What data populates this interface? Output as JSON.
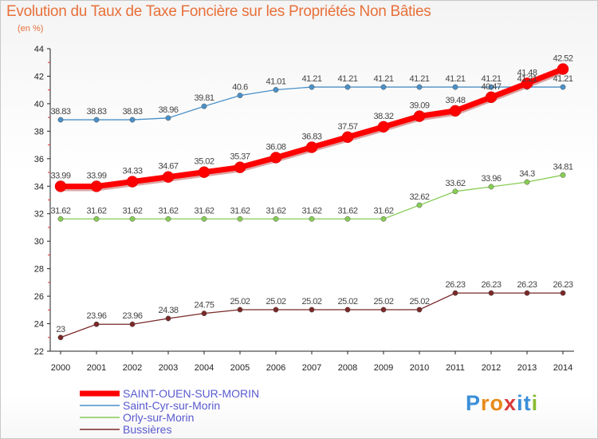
{
  "header": {
    "title": "Evolution du Taux de Taxe Foncière sur les Propriétés Non Bâties",
    "subtitle": "(en %)"
  },
  "chart_data": {
    "type": "line",
    "title": "Evolution du Taux de Taxe Foncière sur les Propriétés Non Bâties",
    "subtitle": "(en %)",
    "xlabel": "",
    "ylabel": "(en %)",
    "categories": [
      "2000",
      "2001",
      "2002",
      "2003",
      "2004",
      "2005",
      "2006",
      "2007",
      "2008",
      "2009",
      "2010",
      "2011",
      "2012",
      "2013",
      "2014"
    ],
    "ylim": [
      22,
      44
    ],
    "yticks": [
      22,
      24,
      26,
      28,
      30,
      32,
      34,
      36,
      38,
      40,
      42,
      44
    ],
    "grid": false,
    "legend_position": "bottom-left",
    "series": [
      {
        "name": "SAINT-OUEN-SUR-MORIN",
        "color": "#ff0000",
        "values": [
          33.99,
          33.99,
          34.33,
          34.67,
          35.02,
          35.37,
          36.08,
          36.83,
          37.57,
          38.32,
          39.09,
          39.48,
          40.47,
          41.48,
          42.52
        ],
        "labels": [
          "33.99",
          "33.99",
          "34.33",
          "34.67",
          "35.02",
          "35.37",
          "36.08",
          "36.83",
          "37.57",
          "38.32",
          "39.09",
          "39.48",
          "40.47",
          "41.48",
          "42.52"
        ]
      },
      {
        "name": "Saint-Cyr-sur-Morin",
        "color": "#4a90c8",
        "values": [
          38.83,
          38.83,
          38.83,
          38.96,
          39.81,
          40.6,
          41.01,
          41.21,
          41.21,
          41.21,
          41.21,
          41.21,
          41.21,
          41.21,
          41.21
        ],
        "labels": [
          "38.83",
          "38.83",
          "38.83",
          "38.96",
          "39.81",
          "40.6",
          "41.01",
          "41.21",
          "41.21",
          "41.21",
          "41.21",
          "41.21",
          "41.21",
          "41.21",
          "41.21"
        ]
      },
      {
        "name": "Orly-sur-Morin",
        "color": "#88cc55",
        "values": [
          31.62,
          31.62,
          31.62,
          31.62,
          31.62,
          31.62,
          31.62,
          31.62,
          31.62,
          31.62,
          32.62,
          33.62,
          33.96,
          34.3,
          34.81
        ],
        "labels": [
          "31.62",
          "31.62",
          "31.62",
          "31.62",
          "31.62",
          "31.62",
          "31.62",
          "31.62",
          "31.62",
          "31.62",
          "32.62",
          "33.62",
          "33.96",
          "34.3",
          "34.81"
        ]
      },
      {
        "name": "Bussières",
        "color": "#7a2828",
        "values": [
          23,
          23.96,
          23.96,
          24.38,
          24.75,
          25.02,
          25.02,
          25.02,
          25.02,
          25.02,
          25.02,
          26.23,
          26.23,
          26.23,
          26.23
        ],
        "labels": [
          "23",
          "23.96",
          "23.96",
          "24.38",
          "24.75",
          "25.02",
          "25.02",
          "25.02",
          "25.02",
          "25.02",
          "25.02",
          "26.23",
          "26.23",
          "26.23",
          "26.23"
        ]
      }
    ]
  },
  "logo": {
    "text": "Proxiti",
    "letters": [
      "P",
      "r",
      "o",
      "x",
      "i",
      "t",
      "i"
    ],
    "letter_colors": [
      "#3a8fd8",
      "#e88a1a",
      "#e88a1a",
      "#d83a3a",
      "#3a8fd8",
      "#3a8fd8",
      "#88bb33"
    ]
  }
}
